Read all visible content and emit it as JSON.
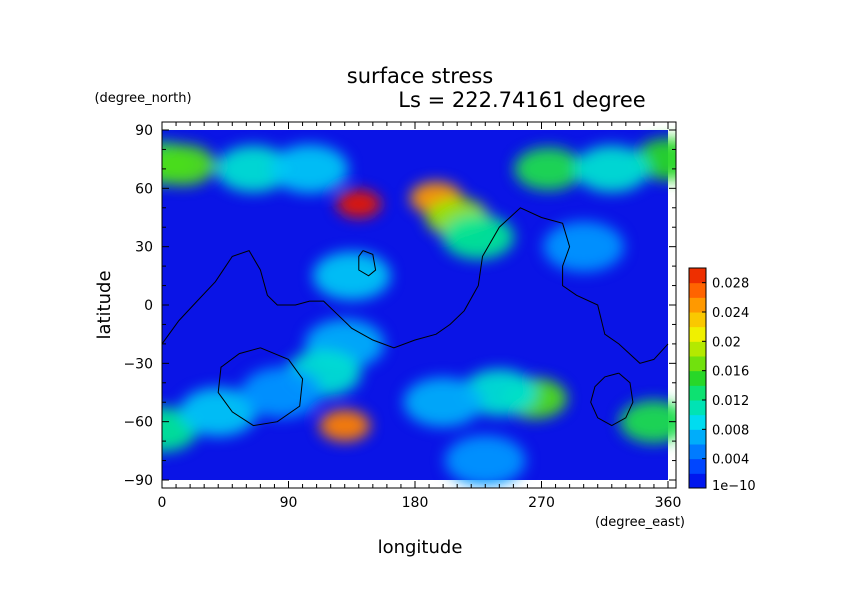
{
  "chart_data": {
    "type": "heatmap",
    "title": "surface stress",
    "subtitle": "Ls = 222.74161 degree",
    "xlabel": "longitude",
    "ylabel": "latitude",
    "x_units": "(degree_east)",
    "y_units": "(degree_north)",
    "xlim": [
      0,
      360
    ],
    "ylim": [
      -90,
      90
    ],
    "x_ticks": [
      "0",
      "90",
      "180",
      "270",
      "360"
    ],
    "y_ticks": [
      "90",
      "60",
      "30",
      "0",
      "−30",
      "−60",
      "−90"
    ],
    "x_tick_values": [
      0,
      90,
      180,
      270,
      360
    ],
    "y_tick_values": [
      90,
      60,
      30,
      0,
      -30,
      -60,
      -90
    ],
    "colorbar": {
      "min": 0,
      "max": 0.03,
      "tick_labels": [
        "1e−10",
        "0.004",
        "0.008",
        "0.012",
        "0.016",
        "0.02",
        "0.024",
        "0.028"
      ],
      "tick_values": [
        0,
        0.004,
        0.008,
        0.012,
        0.016,
        0.02,
        0.024,
        0.028
      ]
    },
    "field_features": [
      {
        "lon": 0,
        "lat": 73,
        "value": 0.014
      },
      {
        "lon": 15,
        "lat": 72,
        "value": 0.016
      },
      {
        "lon": 360,
        "lat": 75,
        "value": 0.015
      },
      {
        "lon": 65,
        "lat": 70,
        "value": 0.01
      },
      {
        "lon": 105,
        "lat": 70,
        "value": 0.008
      },
      {
        "lon": 140,
        "lat": 52,
        "value": 0.03
      },
      {
        "lon": 195,
        "lat": 55,
        "value": 0.025
      },
      {
        "lon": 210,
        "lat": 45,
        "value": 0.018
      },
      {
        "lon": 225,
        "lat": 35,
        "value": 0.012
      },
      {
        "lon": 275,
        "lat": 70,
        "value": 0.014
      },
      {
        "lon": 320,
        "lat": 70,
        "value": 0.01
      },
      {
        "lon": 135,
        "lat": 15,
        "value": 0.008
      },
      {
        "lon": 130,
        "lat": -20,
        "value": 0.007
      },
      {
        "lon": 130,
        "lat": -62,
        "value": 0.026
      },
      {
        "lon": 115,
        "lat": -35,
        "value": 0.01
      },
      {
        "lon": 265,
        "lat": -48,
        "value": 0.016
      },
      {
        "lon": 240,
        "lat": -45,
        "value": 0.01
      },
      {
        "lon": 350,
        "lat": -60,
        "value": 0.014
      },
      {
        "lon": 0,
        "lat": -64,
        "value": 0.012
      },
      {
        "lon": 40,
        "lat": -55,
        "value": 0.008
      },
      {
        "lon": 85,
        "lat": -45,
        "value": 0.006
      },
      {
        "lon": 200,
        "lat": -50,
        "value": 0.007
      },
      {
        "lon": 230,
        "lat": -80,
        "value": 0.006
      },
      {
        "lon": 300,
        "lat": 30,
        "value": 0.006
      }
    ],
    "contours": [
      {
        "points": [
          [
            0,
            -20
          ],
          [
            12,
            -8
          ],
          [
            25,
            2
          ],
          [
            38,
            12
          ],
          [
            50,
            25
          ],
          [
            62,
            28
          ],
          [
            70,
            18
          ],
          [
            75,
            5
          ],
          [
            82,
            0
          ],
          [
            95,
            0
          ],
          [
            105,
            2
          ],
          [
            115,
            2
          ],
          [
            125,
            -5
          ],
          [
            135,
            -12
          ],
          [
            150,
            -18
          ],
          [
            165,
            -22
          ],
          [
            180,
            -18
          ],
          [
            195,
            -15
          ],
          [
            205,
            -10
          ],
          [
            215,
            -3
          ],
          [
            225,
            10
          ],
          [
            228,
            25
          ],
          [
            240,
            40
          ],
          [
            255,
            50
          ],
          [
            270,
            45
          ],
          [
            285,
            42
          ],
          [
            290,
            30
          ],
          [
            285,
            20
          ],
          [
            285,
            10
          ],
          [
            295,
            5
          ],
          [
            310,
            0
          ],
          [
            315,
            -15
          ],
          [
            325,
            -20
          ],
          [
            340,
            -30
          ],
          [
            350,
            -28
          ],
          [
            360,
            -20
          ]
        ]
      },
      {
        "points": [
          [
            143,
            28
          ],
          [
            150,
            26
          ],
          [
            152,
            18
          ],
          [
            147,
            15
          ],
          [
            140,
            18
          ],
          [
            140,
            25
          ],
          [
            143,
            28
          ]
        ]
      },
      {
        "points": [
          [
            70,
            -22
          ],
          [
            90,
            -28
          ],
          [
            100,
            -38
          ],
          [
            98,
            -52
          ],
          [
            82,
            -60
          ],
          [
            65,
            -62
          ],
          [
            50,
            -55
          ],
          [
            40,
            -45
          ],
          [
            42,
            -32
          ],
          [
            55,
            -25
          ],
          [
            70,
            -22
          ]
        ]
      },
      {
        "points": [
          [
            325,
            -35
          ],
          [
            333,
            -40
          ],
          [
            335,
            -50
          ],
          [
            330,
            -58
          ],
          [
            320,
            -62
          ],
          [
            310,
            -58
          ],
          [
            305,
            -50
          ],
          [
            308,
            -42
          ],
          [
            315,
            -37
          ],
          [
            325,
            -35
          ]
        ]
      }
    ]
  }
}
